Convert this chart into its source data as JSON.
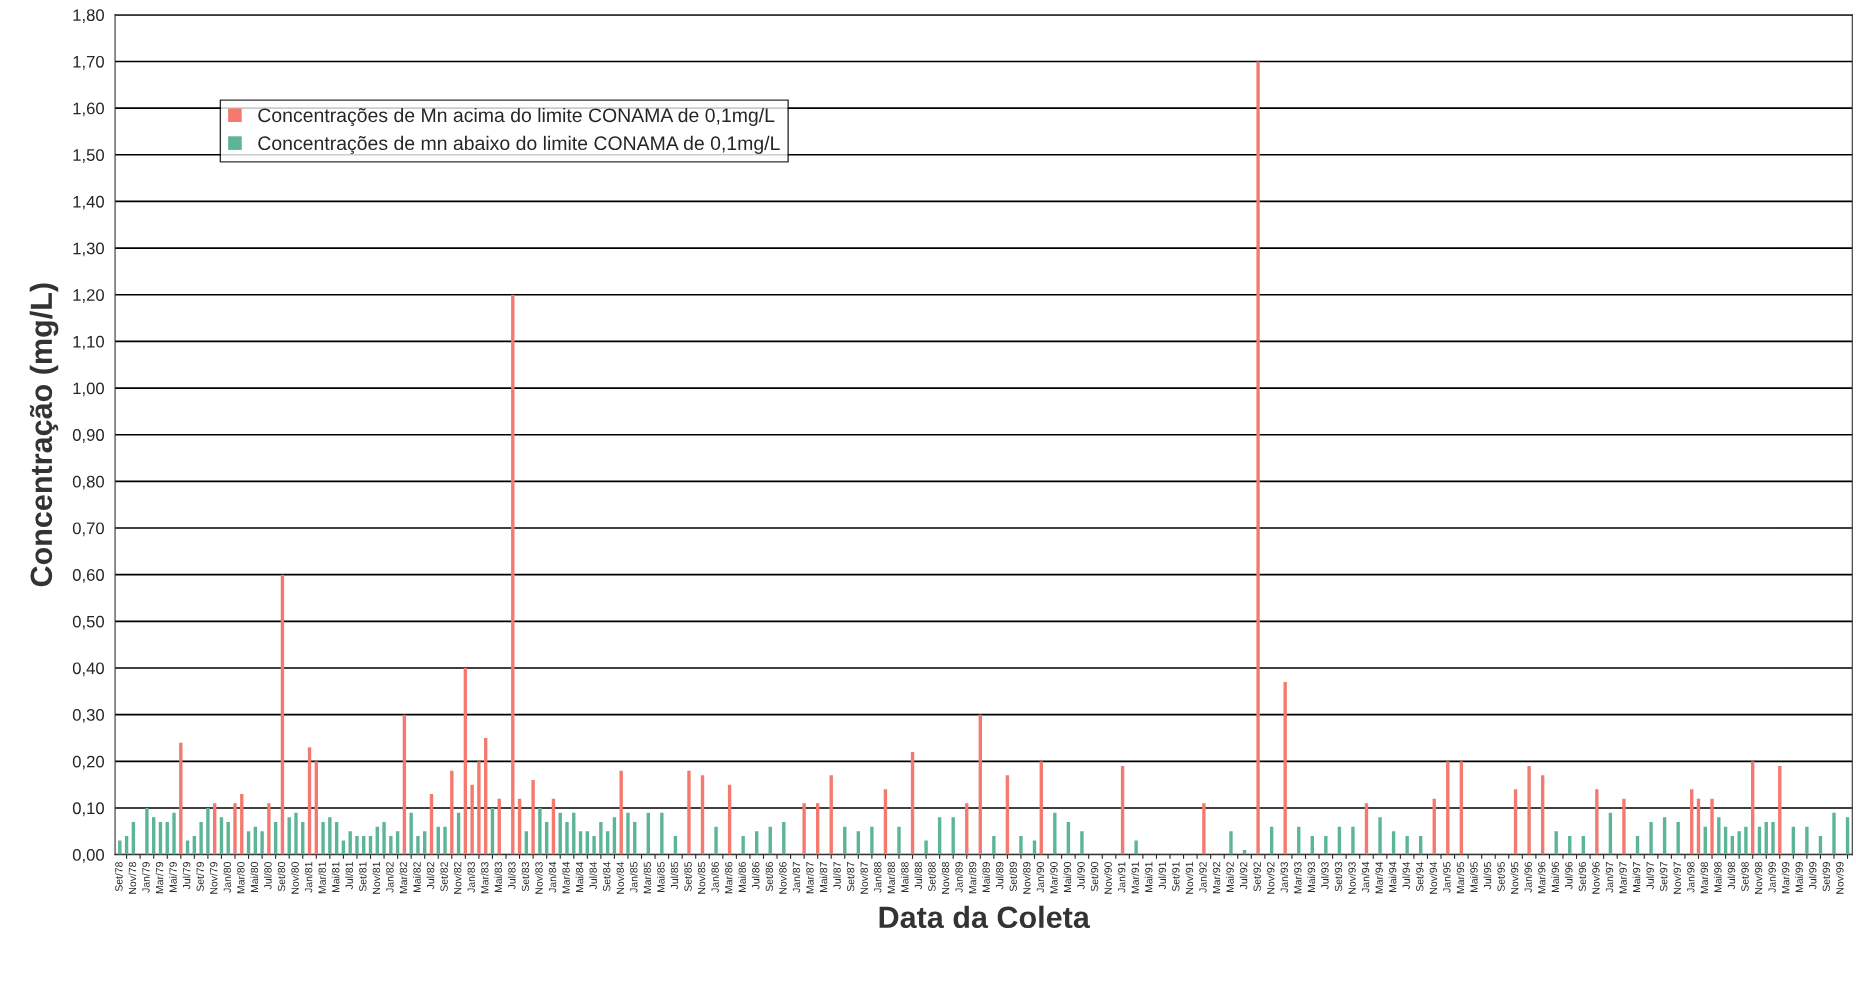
{
  "chart_data": {
    "type": "bar",
    "xlabel": "Data da Coleta",
    "ylabel": "Concentração (mg/L)",
    "categories": [
      "Set/78",
      null,
      "Nov/78",
      null,
      "Jan/79",
      null,
      "Mar/79",
      null,
      "Mai/79",
      null,
      "Jul/79",
      null,
      "Set/79",
      null,
      "Nov/79",
      null,
      "Jan/80",
      null,
      "Mar/80",
      null,
      "Mai/80",
      null,
      "Jul/80",
      null,
      "Set/80",
      null,
      "Nov/80",
      null,
      "Jan/81",
      null,
      "Mar/81",
      null,
      "Mai/81",
      null,
      "Jul/81",
      null,
      "Set/81",
      null,
      "Nov/81",
      null,
      "Jan/82",
      null,
      "Mar/82",
      null,
      "Mai/82",
      null,
      "Jul/82",
      null,
      "Set/82",
      null,
      "Nov/82",
      null,
      "Jan/83",
      null,
      "Mar/83",
      null,
      "Mai/83",
      null,
      "Jul/83",
      null,
      "Set/83",
      null,
      "Nov/83",
      null,
      "Jan/84",
      null,
      "Mar/84",
      null,
      "Mai/84",
      null,
      "Jul/84",
      null,
      "Set/84",
      null,
      "Nov/84",
      null,
      "Jan/85",
      null,
      "Mar/85",
      null,
      "Mai/85",
      null,
      "Jul/85",
      null,
      "Set/85",
      null,
      "Nov/85",
      null,
      "Jan/86",
      null,
      "Mar/86",
      null,
      "Mai/86",
      null,
      "Jul/86",
      null,
      "Set/86",
      null,
      "Nov/86",
      null,
      "Jan/87",
      null,
      "Mar/87",
      null,
      "Mai/87",
      null,
      "Jul/87",
      null,
      "Set/87",
      null,
      "Nov/87",
      null,
      "Jan/88",
      null,
      "Mar/88",
      null,
      "Mai/88",
      null,
      "Jul/88",
      null,
      "Set/88",
      null,
      "Nov/88",
      null,
      "Jan/89",
      null,
      "Mar/89",
      null,
      "Mai/89",
      null,
      "Jul/89",
      null,
      "Set/89",
      null,
      "Nov/89",
      null,
      "Jan/90",
      null,
      "Mar/90",
      null,
      "Mai/90",
      null,
      "Jul/90",
      null,
      "Set/90",
      null,
      "Nov/90",
      null,
      "Jan/91",
      null,
      "Mar/91",
      null,
      "Mai/91",
      null,
      "Jul/91",
      null,
      "Set/91",
      null,
      "Nov/91",
      null,
      "Jan/92",
      null,
      "Mar/92",
      null,
      "Mai/92",
      null,
      "Jul/92",
      null,
      "Set/92",
      null,
      "Nov/92",
      null,
      "Jan/93",
      null,
      "Mar/93",
      null,
      "Mai/93",
      null,
      "Jul/93",
      null,
      "Set/93",
      null,
      "Nov/93",
      null,
      "Jan/94",
      null,
      "Mar/94",
      null,
      "Mai/94",
      null,
      "Jul/94",
      null,
      "Set/94",
      null,
      "Nov/94",
      null,
      "Jan/95",
      null,
      "Mar/95",
      null,
      "Mai/95",
      null,
      "Jul/95",
      null,
      "Set/95",
      null,
      "Nov/95",
      null,
      "Jan/96",
      null,
      "Mar/96",
      null,
      "Mai/96",
      null,
      "Jul/96",
      null,
      "Set/96",
      null,
      "Nov/96",
      null,
      "Jan/97",
      null,
      "Mar/97",
      null,
      "Mai/97",
      null,
      "Jul/97",
      null,
      "Set/97",
      null,
      "Nov/97",
      null,
      "Jan/98",
      null,
      "Mar/98",
      null,
      "Mai/98",
      null,
      "Jul/98",
      null,
      "Set/98",
      null,
      "Nov/98",
      null,
      "Jan/99",
      null,
      "Mar/99",
      null,
      "Mai/99",
      null,
      "Jul/99",
      null,
      "Set/99",
      null,
      "Nov/99",
      null
    ],
    "series": [
      {
        "name": "Concentrações de Mn acima do limite CONAMA de 0,1mg/L",
        "color": "#f47a70",
        "values": [
          null,
          null,
          null,
          null,
          null,
          null,
          null,
          null,
          null,
          0.24,
          null,
          null,
          null,
          null,
          0.11,
          null,
          null,
          0.11,
          0.13,
          null,
          null,
          null,
          0.11,
          null,
          0.6,
          null,
          null,
          null,
          0.23,
          0.2,
          null,
          null,
          null,
          null,
          null,
          null,
          null,
          null,
          null,
          null,
          null,
          null,
          0.3,
          null,
          null,
          null,
          0.13,
          null,
          null,
          0.18,
          null,
          0.4,
          0.15,
          0.2,
          0.25,
          null,
          0.12,
          null,
          1.2,
          0.12,
          null,
          0.16,
          null,
          null,
          0.12,
          null,
          null,
          null,
          null,
          null,
          null,
          null,
          null,
          null,
          0.18,
          null,
          null,
          null,
          null,
          null,
          null,
          null,
          null,
          null,
          0.18,
          null,
          0.17,
          null,
          null,
          null,
          0.15,
          null,
          null,
          null,
          null,
          null,
          null,
          null,
          null,
          null,
          null,
          0.11,
          null,
          0.11,
          null,
          0.17,
          null,
          null,
          null,
          null,
          null,
          null,
          null,
          0.14,
          null,
          null,
          null,
          0.22,
          null,
          null,
          null,
          null,
          null,
          null,
          null,
          0.11,
          null,
          0.3,
          null,
          null,
          null,
          0.17,
          null,
          null,
          null,
          null,
          0.2,
          null,
          null,
          null,
          null,
          null,
          null,
          null,
          null,
          null,
          null,
          null,
          0.19,
          null,
          null,
          null,
          null,
          null,
          null,
          null,
          null,
          null,
          null,
          null,
          0.11,
          null,
          null,
          null,
          null,
          null,
          null,
          null,
          1.7,
          null,
          null,
          null,
          0.37,
          null,
          null,
          null,
          null,
          null,
          null,
          null,
          null,
          null,
          null,
          null,
          0.11,
          null,
          null,
          null,
          null,
          null,
          null,
          null,
          null,
          null,
          0.12,
          null,
          0.2,
          null,
          0.2,
          null,
          null,
          null,
          null,
          null,
          null,
          null,
          0.14,
          null,
          0.19,
          null,
          0.17,
          null,
          null,
          null,
          null,
          null,
          null,
          null,
          0.14,
          null,
          null,
          null,
          0.12,
          null,
          null,
          null,
          null,
          null,
          null,
          null,
          null,
          null,
          0.14,
          0.12,
          null,
          0.12,
          null,
          null,
          null,
          null,
          null,
          0.2,
          null,
          null,
          null,
          0.19,
          null,
          null,
          null,
          null,
          null,
          null,
          null,
          null,
          null,
          null
        ]
      },
      {
        "name": "Concentrações de mn abaixo do limite CONAMA de 0,1mg/L",
        "color": "#5cb595",
        "values": [
          0.03,
          0.04,
          0.07,
          null,
          0.1,
          0.08,
          0.07,
          0.07,
          0.09,
          null,
          0.03,
          0.04,
          0.07,
          0.1,
          null,
          0.08,
          0.07,
          null,
          null,
          0.05,
          0.06,
          0.05,
          null,
          0.07,
          null,
          0.08,
          0.09,
          0.07,
          null,
          null,
          0.07,
          0.08,
          0.07,
          0.03,
          0.05,
          0.04,
          0.04,
          0.04,
          0.06,
          0.07,
          0.04,
          0.05,
          null,
          0.09,
          0.04,
          0.05,
          null,
          0.06,
          0.06,
          null,
          0.09,
          null,
          null,
          null,
          null,
          0.1,
          null,
          null,
          null,
          null,
          0.05,
          null,
          0.1,
          0.07,
          null,
          0.09,
          0.07,
          0.09,
          0.05,
          0.05,
          0.04,
          0.07,
          0.05,
          0.08,
          null,
          0.09,
          0.07,
          null,
          0.09,
          null,
          0.09,
          null,
          0.04,
          null,
          null,
          null,
          null,
          null,
          0.06,
          null,
          null,
          null,
          0.04,
          null,
          0.05,
          null,
          0.06,
          null,
          0.07,
          null,
          null,
          null,
          null,
          null,
          null,
          null,
          null,
          0.06,
          null,
          0.05,
          null,
          0.06,
          null,
          null,
          null,
          0.06,
          null,
          null,
          null,
          0.03,
          null,
          0.08,
          null,
          0.08,
          null,
          null,
          null,
          null,
          null,
          0.04,
          null,
          null,
          null,
          0.04,
          null,
          0.03,
          null,
          null,
          0.09,
          null,
          0.07,
          null,
          0.05,
          null,
          null,
          null,
          null,
          null,
          null,
          null,
          0.03,
          null,
          null,
          null,
          null,
          null,
          null,
          null,
          null,
          null,
          null,
          null,
          null,
          null,
          0.05,
          null,
          0.01,
          null,
          null,
          null,
          0.06,
          null,
          null,
          null,
          0.06,
          null,
          0.04,
          null,
          0.04,
          null,
          0.06,
          null,
          0.06,
          null,
          null,
          null,
          0.08,
          null,
          0.05,
          null,
          0.04,
          null,
          0.04,
          null,
          null,
          null,
          null,
          null,
          null,
          null,
          null,
          null,
          null,
          null,
          null,
          null,
          null,
          null,
          null,
          null,
          null,
          null,
          0.05,
          null,
          0.04,
          null,
          0.04,
          null,
          null,
          null,
          0.09,
          null,
          null,
          null,
          0.04,
          null,
          0.07,
          null,
          0.08,
          null,
          0.07,
          null,
          null,
          null,
          0.06,
          null,
          0.08,
          0.06,
          0.04,
          0.05,
          0.06,
          null,
          0.06,
          0.07,
          0.07,
          null,
          null,
          0.06,
          null,
          0.06,
          null,
          0.04,
          null,
          0.09,
          null,
          0.08
        ]
      }
    ],
    "ylim": [
      0,
      1.8
    ],
    "yticks": [
      {
        "value": 0,
        "label": "0,00"
      },
      {
        "value": 0.1,
        "label": "0,10"
      },
      {
        "value": 0.2,
        "label": "0,20"
      },
      {
        "value": 0.3,
        "label": "0,30"
      },
      {
        "value": 0.4,
        "label": "0,40"
      },
      {
        "value": 0.5,
        "label": "0,50"
      },
      {
        "value": 0.6,
        "label": "0,60"
      },
      {
        "value": 0.7,
        "label": "0,70"
      },
      {
        "value": 0.8,
        "label": "0,80"
      },
      {
        "value": 0.9,
        "label": "0,90"
      },
      {
        "value": 1.0,
        "label": "1,00"
      },
      {
        "value": 1.1,
        "label": "1,10"
      },
      {
        "value": 1.2,
        "label": "1,20"
      },
      {
        "value": 1.3,
        "label": "1,30"
      },
      {
        "value": 1.4,
        "label": "1,40"
      },
      {
        "value": 1.5,
        "label": "1,50"
      },
      {
        "value": 1.6,
        "label": "1,60"
      },
      {
        "value": 1.7,
        "label": "1,70"
      },
      {
        "value": 1.8,
        "label": "1,80"
      }
    ],
    "grid": "y",
    "legend": "top left"
  }
}
